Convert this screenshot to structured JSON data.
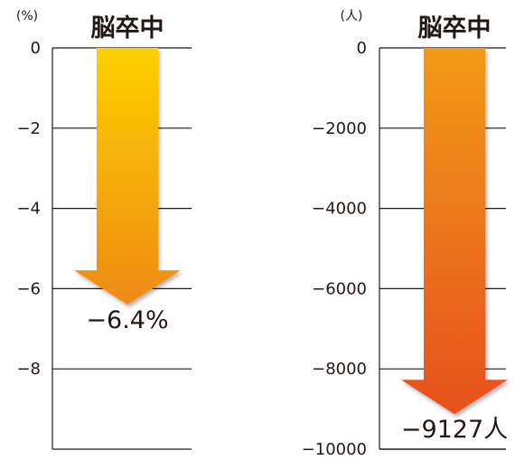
{
  "chart_data": [
    {
      "type": "bar",
      "categories": [
        "脳卒中"
      ],
      "values": [
        -6.4
      ],
      "value_label": "−6.4%",
      "unit": "(%)",
      "ylim": [
        -10,
        0
      ],
      "yticks": [
        0,
        -2,
        -4,
        -6,
        -8
      ],
      "ytick_labels": [
        "0",
        "−2",
        "−4",
        "−6",
        "−8"
      ],
      "grid": true,
      "colors": {
        "start": "#fdd000",
        "end": "#ef8a14"
      }
    },
    {
      "type": "bar",
      "categories": [
        "脳卒中"
      ],
      "values": [
        -9127
      ],
      "value_label": "−9127人",
      "unit": "(人)",
      "ylim": [
        -10000,
        0
      ],
      "yticks": [
        0,
        -2000,
        -4000,
        -6000,
        -8000,
        -10000
      ],
      "ytick_labels": [
        "0",
        "−2000",
        "−4000",
        "−6000",
        "−8000",
        "−10000"
      ],
      "grid": true,
      "colors": {
        "start": "#f29a18",
        "end": "#e6501e"
      }
    }
  ]
}
